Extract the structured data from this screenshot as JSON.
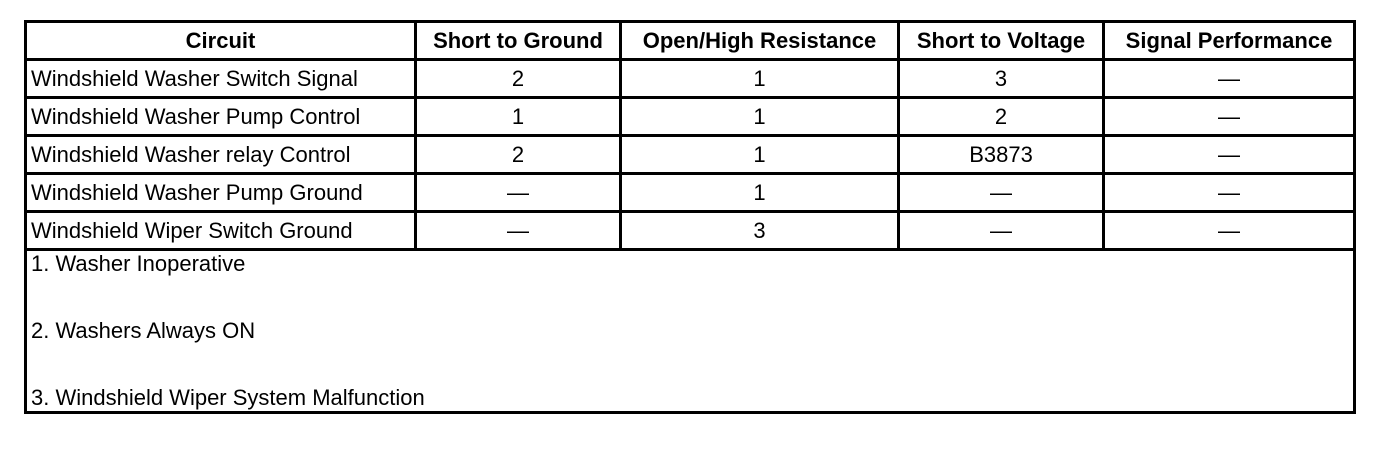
{
  "table": {
    "headers": [
      "Circuit",
      "Short to Ground",
      "Open/High Resistance",
      "Short to Voltage",
      "Signal Performance"
    ],
    "rows": [
      {
        "circuit": "Windshield Washer Switch Signal",
        "short_to_ground": "2",
        "open_high_resistance": "1",
        "short_to_voltage": "3",
        "signal_performance": "—"
      },
      {
        "circuit": "Windshield Washer Pump Control",
        "short_to_ground": "1",
        "open_high_resistance": "1",
        "short_to_voltage": "2",
        "signal_performance": "—"
      },
      {
        "circuit": "Windshield Washer relay Control",
        "short_to_ground": "2",
        "open_high_resistance": "1",
        "short_to_voltage": "B3873",
        "signal_performance": "—"
      },
      {
        "circuit": "Windshield Washer Pump Ground",
        "short_to_ground": "—",
        "open_high_resistance": "1",
        "short_to_voltage": "—",
        "signal_performance": "—"
      },
      {
        "circuit": "Windshield Wiper Switch Ground",
        "short_to_ground": "—",
        "open_high_resistance": "3",
        "short_to_voltage": "—",
        "signal_performance": "—"
      }
    ],
    "notes": [
      "1. Washer Inoperative",
      "2. Washers Always ON",
      "3. Windshield Wiper System Malfunction"
    ]
  }
}
